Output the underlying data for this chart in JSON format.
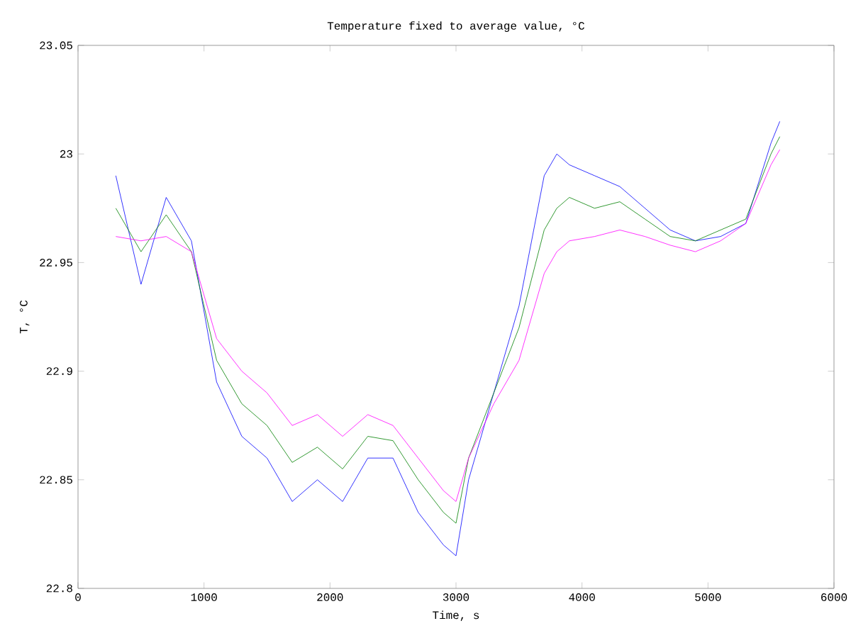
{
  "chart_data": {
    "type": "line",
    "title": "Temperature fixed to average value, °C",
    "xlabel": "Time, s",
    "ylabel": "T, °C",
    "x": [
      300,
      500,
      700,
      900,
      1100,
      1300,
      1500,
      1700,
      1900,
      2100,
      2300,
      2500,
      2700,
      2900,
      3000,
      3100,
      3300,
      3500,
      3700,
      3800,
      3900,
      4100,
      4300,
      4500,
      4700,
      4900,
      5100,
      5300,
      5500,
      5570
    ],
    "series": [
      {
        "color": "#0000ff",
        "values": [
          22.99,
          22.94,
          22.98,
          22.96,
          22.895,
          22.87,
          22.86,
          22.84,
          22.85,
          22.84,
          22.86,
          22.86,
          22.835,
          22.82,
          22.815,
          22.85,
          22.89,
          22.93,
          22.99,
          23.0,
          22.995,
          22.99,
          22.985,
          22.975,
          22.965,
          22.96,
          22.962,
          22.968,
          23.005,
          23.015
        ]
      },
      {
        "color": "#008000",
        "values": [
          22.975,
          22.955,
          22.972,
          22.955,
          22.905,
          22.885,
          22.875,
          22.858,
          22.865,
          22.855,
          22.87,
          22.868,
          22.85,
          22.835,
          22.83,
          22.86,
          22.89,
          22.92,
          22.965,
          22.975,
          22.98,
          22.975,
          22.978,
          22.97,
          22.962,
          22.96,
          22.965,
          22.97,
          23.0,
          23.008
        ]
      },
      {
        "color": "#ff00ff",
        "values": [
          22.962,
          22.96,
          22.962,
          22.955,
          22.915,
          22.9,
          22.89,
          22.875,
          22.88,
          22.87,
          22.88,
          22.875,
          22.86,
          22.845,
          22.84,
          22.86,
          22.885,
          22.905,
          22.945,
          22.955,
          22.96,
          22.962,
          22.965,
          22.962,
          22.958,
          22.955,
          22.96,
          22.968,
          22.995,
          23.002
        ]
      }
    ],
    "xlim": [
      0,
      6000
    ],
    "xticks": [
      0,
      1000,
      2000,
      3000,
      4000,
      5000,
      6000
    ],
    "ylim": [
      22.8,
      23.05
    ],
    "yticks": [
      22.8,
      22.85,
      22.9,
      22.95,
      23,
      23.05
    ],
    "grid": false
  }
}
